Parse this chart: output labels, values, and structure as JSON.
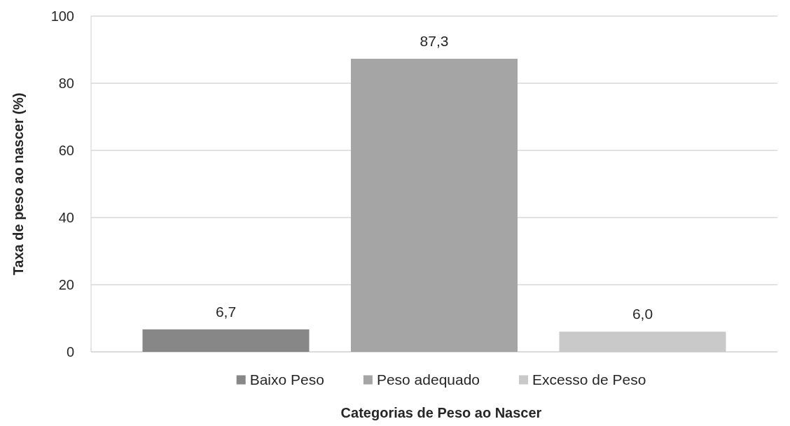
{
  "chart_data": {
    "type": "bar",
    "xlabel": "Categorias de Peso ao Nascer",
    "ylabel": "Taxa de peso ao nascer (%)",
    "categories": [
      null
    ],
    "series": [
      {
        "name": "Baixo Peso",
        "color": "#878787",
        "values": [
          6.7
        ],
        "value_labels": [
          "6,7"
        ]
      },
      {
        "name": "Peso adequado",
        "color": "#a5a5a5",
        "values": [
          87.3
        ],
        "value_labels": [
          "87,3"
        ]
      },
      {
        "name": "Excesso de Peso",
        "color": "#c9c9c9",
        "values": [
          6.0
        ],
        "value_labels": [
          "6,0"
        ]
      }
    ],
    "ylim": [
      0,
      100
    ],
    "yticks": [
      0,
      20,
      40,
      60,
      80,
      100
    ],
    "grid": "y",
    "legend": "bottom"
  }
}
